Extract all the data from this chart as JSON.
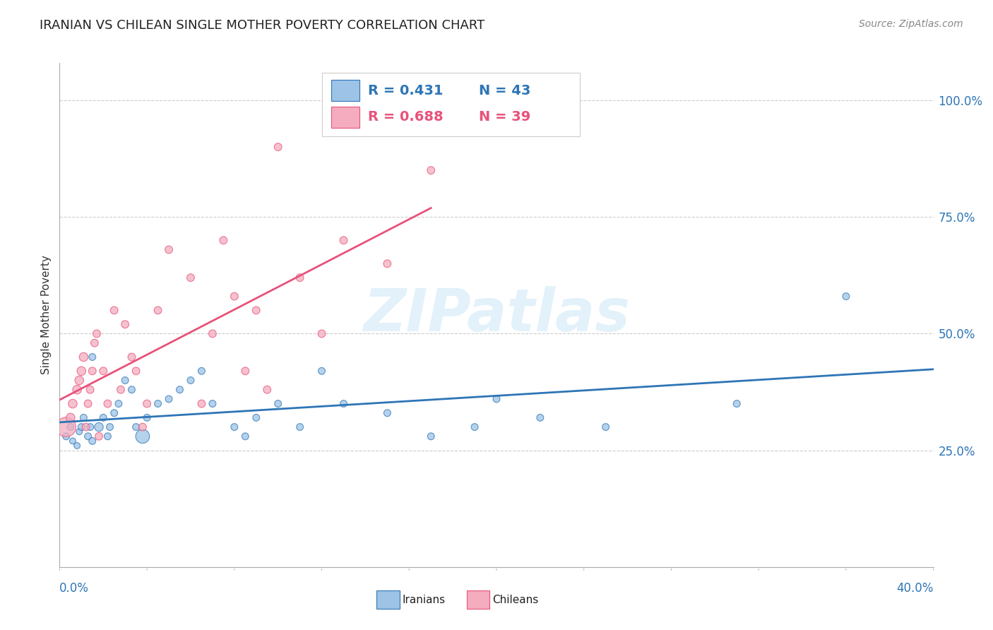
{
  "title": "IRANIAN VS CHILEAN SINGLE MOTHER POVERTY CORRELATION CHART",
  "source": "Source: ZipAtlas.com",
  "iranians_R": 0.431,
  "iranians_N": 43,
  "chileans_R": 0.688,
  "chileans_N": 39,
  "iranian_color": "#9DC3E6",
  "chilean_color": "#F4ACBE",
  "iranian_line_color": "#2E75B6",
  "chilean_line_color": "#E8527A",
  "watermark": "ZIPatlas",
  "background_color": "#FFFFFF",
  "xlim": [
    0.0,
    0.4
  ],
  "ylim": [
    0.0,
    1.08
  ],
  "ylabel_ticks": [
    0.25,
    0.5,
    0.75,
    1.0
  ],
  "ylabel_labels": [
    "25.0%",
    "50.0%",
    "75.0%",
    "100.0%"
  ],
  "iranians_x": [
    0.003,
    0.005,
    0.006,
    0.008,
    0.009,
    0.01,
    0.011,
    0.013,
    0.014,
    0.015,
    0.015,
    0.018,
    0.02,
    0.022,
    0.023,
    0.025,
    0.027,
    0.03,
    0.033,
    0.035,
    0.038,
    0.04,
    0.045,
    0.05,
    0.055,
    0.06,
    0.065,
    0.07,
    0.08,
    0.085,
    0.09,
    0.1,
    0.11,
    0.12,
    0.13,
    0.15,
    0.17,
    0.19,
    0.2,
    0.22,
    0.25,
    0.31,
    0.36
  ],
  "iranians_y": [
    0.28,
    0.3,
    0.27,
    0.26,
    0.29,
    0.3,
    0.32,
    0.28,
    0.3,
    0.27,
    0.45,
    0.3,
    0.32,
    0.28,
    0.3,
    0.33,
    0.35,
    0.4,
    0.38,
    0.3,
    0.28,
    0.32,
    0.35,
    0.36,
    0.38,
    0.4,
    0.42,
    0.35,
    0.3,
    0.28,
    0.32,
    0.35,
    0.3,
    0.42,
    0.35,
    0.33,
    0.28,
    0.3,
    0.36,
    0.32,
    0.3,
    0.35,
    0.58
  ],
  "iranians_s": [
    50,
    50,
    40,
    40,
    40,
    50,
    50,
    50,
    50,
    50,
    50,
    80,
    50,
    50,
    50,
    50,
    50,
    50,
    50,
    50,
    200,
    50,
    50,
    50,
    50,
    50,
    50,
    50,
    50,
    50,
    50,
    50,
    50,
    50,
    50,
    50,
    50,
    50,
    50,
    50,
    50,
    50,
    50
  ],
  "chileans_x": [
    0.003,
    0.005,
    0.006,
    0.008,
    0.009,
    0.01,
    0.011,
    0.012,
    0.013,
    0.014,
    0.015,
    0.016,
    0.017,
    0.018,
    0.02,
    0.022,
    0.025,
    0.028,
    0.03,
    0.033,
    0.035,
    0.038,
    0.04,
    0.045,
    0.05,
    0.06,
    0.065,
    0.07,
    0.075,
    0.08,
    0.085,
    0.09,
    0.095,
    0.1,
    0.11,
    0.12,
    0.13,
    0.15,
    0.17
  ],
  "chileans_y": [
    0.3,
    0.32,
    0.35,
    0.38,
    0.4,
    0.42,
    0.45,
    0.3,
    0.35,
    0.38,
    0.42,
    0.48,
    0.5,
    0.28,
    0.42,
    0.35,
    0.55,
    0.38,
    0.52,
    0.45,
    0.42,
    0.3,
    0.35,
    0.55,
    0.68,
    0.62,
    0.35,
    0.5,
    0.7,
    0.58,
    0.42,
    0.55,
    0.38,
    0.9,
    0.62,
    0.5,
    0.7,
    0.65,
    0.85
  ],
  "chileans_s": [
    400,
    80,
    80,
    80,
    80,
    80,
    80,
    60,
    60,
    60,
    60,
    60,
    60,
    60,
    60,
    60,
    60,
    60,
    60,
    60,
    60,
    60,
    60,
    60,
    60,
    60,
    60,
    60,
    60,
    60,
    60,
    60,
    60,
    60,
    60,
    60,
    60,
    60,
    60
  ]
}
